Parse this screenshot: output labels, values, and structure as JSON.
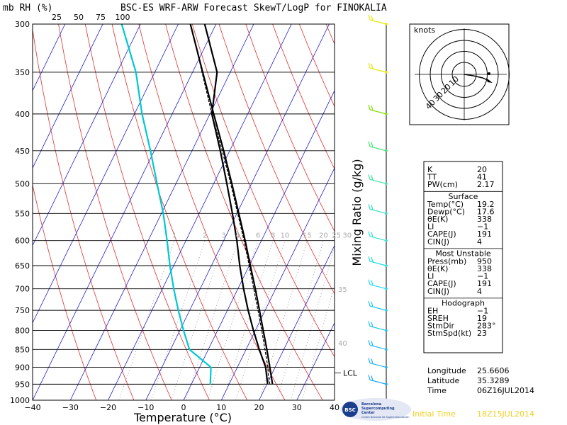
{
  "header": {
    "left_label": "mb RH (%)",
    "title": "BSC-ES WRF-ARW Forecast SkewT/LogP for FINOKALIA",
    "rh_ticks": [
      "25",
      "50",
      "75",
      "100"
    ]
  },
  "chart_data": {
    "type": "line",
    "title": "BSC-ES WRF-ARW Forecast SkewT/LogP for FINOKALIA",
    "xlabel": "Temperature (°C)",
    "ylabel": "Mixing Ratio (g/kg)",
    "x_ticks": [
      "−40",
      "−30",
      "−20",
      "−10",
      "0",
      "10",
      "20",
      "30",
      "40"
    ],
    "xlim": [
      -40,
      40
    ],
    "pressure_levels": [
      300,
      350,
      400,
      450,
      500,
      550,
      600,
      650,
      700,
      750,
      800,
      850,
      900,
      950,
      1000
    ],
    "pressure_labels": [
      "300",
      "350",
      "400",
      "450",
      "500",
      "550",
      "600",
      "650",
      "700",
      "750",
      "800",
      "850",
      "900",
      "950",
      "1000"
    ],
    "mixing_ratio_labels": [
      "1",
      "2",
      "3",
      "4",
      "6",
      "8",
      "10",
      "15",
      "20",
      "25",
      "30"
    ],
    "side_labels": [
      {
        "text": "35",
        "p": 707
      },
      {
        "text": "40",
        "p": 840
      },
      {
        "text": "LCL",
        "p": 925
      }
    ],
    "series": [
      {
        "name": "Temperature",
        "color": "#000000",
        "points": [
          [
            950,
            20.2
          ],
          [
            900,
            17.5
          ],
          [
            850,
            13.5
          ],
          [
            800,
            9.5
          ],
          [
            750,
            5.5
          ],
          [
            700,
            1.5
          ],
          [
            650,
            -2.5
          ],
          [
            600,
            -6.5
          ],
          [
            550,
            -11.2
          ],
          [
            500,
            -16.5
          ],
          [
            450,
            -22.5
          ],
          [
            400,
            -29.5
          ],
          [
            350,
            -33.5
          ],
          [
            300,
            -43.0
          ]
        ]
      },
      {
        "name": "Dew point",
        "color": "#00c8d0",
        "points": [
          [
            950,
            5.0
          ],
          [
            900,
            3.0
          ],
          [
            850,
            -5.0
          ],
          [
            800,
            -9.0
          ],
          [
            750,
            -13.0
          ],
          [
            700,
            -17.0
          ],
          [
            650,
            -21.0
          ],
          [
            600,
            -25.0
          ],
          [
            550,
            -29.5
          ],
          [
            500,
            -35.0
          ],
          [
            450,
            -41.0
          ],
          [
            400,
            -48.0
          ],
          [
            350,
            -55.0
          ],
          [
            300,
            -65.0
          ]
        ]
      },
      {
        "name": "Parcel",
        "color": "#000000",
        "dashed": true,
        "points": [
          [
            950,
            20.8
          ],
          [
            925,
            19.3
          ],
          [
            900,
            18.1
          ],
          [
            850,
            15.0
          ],
          [
            800,
            11.7
          ],
          [
            750,
            8.1
          ],
          [
            700,
            4.2
          ],
          [
            650,
            0.0
          ],
          [
            600,
            -4.6
          ],
          [
            550,
            -9.8
          ],
          [
            500,
            -15.5
          ],
          [
            450,
            -22.0
          ],
          [
            400,
            -29.5
          ],
          [
            350,
            -37.5
          ],
          [
            330,
            -41.0
          ]
        ]
      },
      {
        "name": "Moist adiabat",
        "color": "#000000",
        "points": [
          [
            950,
            21.5
          ],
          [
            900,
            18.6
          ],
          [
            850,
            15.5
          ],
          [
            800,
            12.1
          ],
          [
            750,
            8.5
          ],
          [
            700,
            4.6
          ],
          [
            650,
            0.3
          ],
          [
            600,
            -4.3
          ],
          [
            550,
            -9.5
          ],
          [
            500,
            -15.2
          ],
          [
            450,
            -21.6
          ],
          [
            400,
            -29.0
          ],
          [
            350,
            -37.3
          ],
          [
            300,
            -46.8
          ]
        ]
      }
    ],
    "wind_barbs": [
      {
        "p": 300,
        "color": "#e8e800"
      },
      {
        "p": 350,
        "color": "#e8e800"
      },
      {
        "p": 400,
        "color": "#80e000"
      },
      {
        "p": 450,
        "color": "#40e070"
      },
      {
        "p": 500,
        "color": "#40e0a0"
      },
      {
        "p": 550,
        "color": "#30e0c0"
      },
      {
        "p": 600,
        "color": "#30e0d0"
      },
      {
        "p": 650,
        "color": "#20e0e0"
      },
      {
        "p": 700,
        "color": "#20d8f0"
      },
      {
        "p": 750,
        "color": "#20c8f0"
      },
      {
        "p": 800,
        "color": "#20c0f0"
      },
      {
        "p": 850,
        "color": "#20b8f0"
      },
      {
        "p": 900,
        "color": "#20b0f0"
      },
      {
        "p": 950,
        "color": "#20a8f0"
      }
    ],
    "hodograph": {
      "units": "knots",
      "ring_labels": [
        "10",
        "20",
        "30",
        "40"
      ],
      "rings": [
        10,
        20,
        30,
        40
      ]
    }
  },
  "info_table": {
    "rows": [
      {
        "k": "K",
        "v": "20"
      },
      {
        "k": "TT",
        "v": "41"
      },
      {
        "k": "PW(cm)",
        "v": "2.17"
      }
    ],
    "surface_title": "Surface",
    "surface": [
      {
        "k": "Temp(°C)",
        "v": "19.2"
      },
      {
        "k": "Dewp(°C)",
        "v": "17.6"
      },
      {
        "k": "θE(K)",
        "v": "338"
      },
      {
        "k": "LI",
        "v": "−1"
      },
      {
        "k": "CAPE(J)",
        "v": "191"
      },
      {
        "k": "CIN(J)",
        "v": "4"
      }
    ],
    "mu_title": "Most Unstable",
    "mu": [
      {
        "k": "Press(mb)",
        "v": "950"
      },
      {
        "k": "θE(K)",
        "v": "338"
      },
      {
        "k": "LI",
        "v": "−1"
      },
      {
        "k": "CAPE(J)",
        "v": "191"
      },
      {
        "k": "CIN(J)",
        "v": "4"
      }
    ],
    "hodo_title": "Hodograph",
    "hodo": [
      {
        "k": "EH",
        "v": "−1"
      },
      {
        "k": "SREH",
        "v": "19"
      },
      {
        "k": "StmDir",
        "v": "283°"
      },
      {
        "k": "StmSpd(kt)",
        "v": "23"
      }
    ]
  },
  "location": [
    {
      "k": "Longitude",
      "v": "25.6606"
    },
    {
      "k": "Latitude",
      "v": "35.3289"
    },
    {
      "k": "Time",
      "v": "06Z16JUL2014"
    }
  ],
  "footer": {
    "logo_lines": [
      "Barcelona",
      "Supercomputing",
      "Center"
    ],
    "logo_sub": "Centro Nacional de Supercomputación",
    "initial_label": "Initial Time",
    "initial_value": "18Z15JUL2014"
  }
}
